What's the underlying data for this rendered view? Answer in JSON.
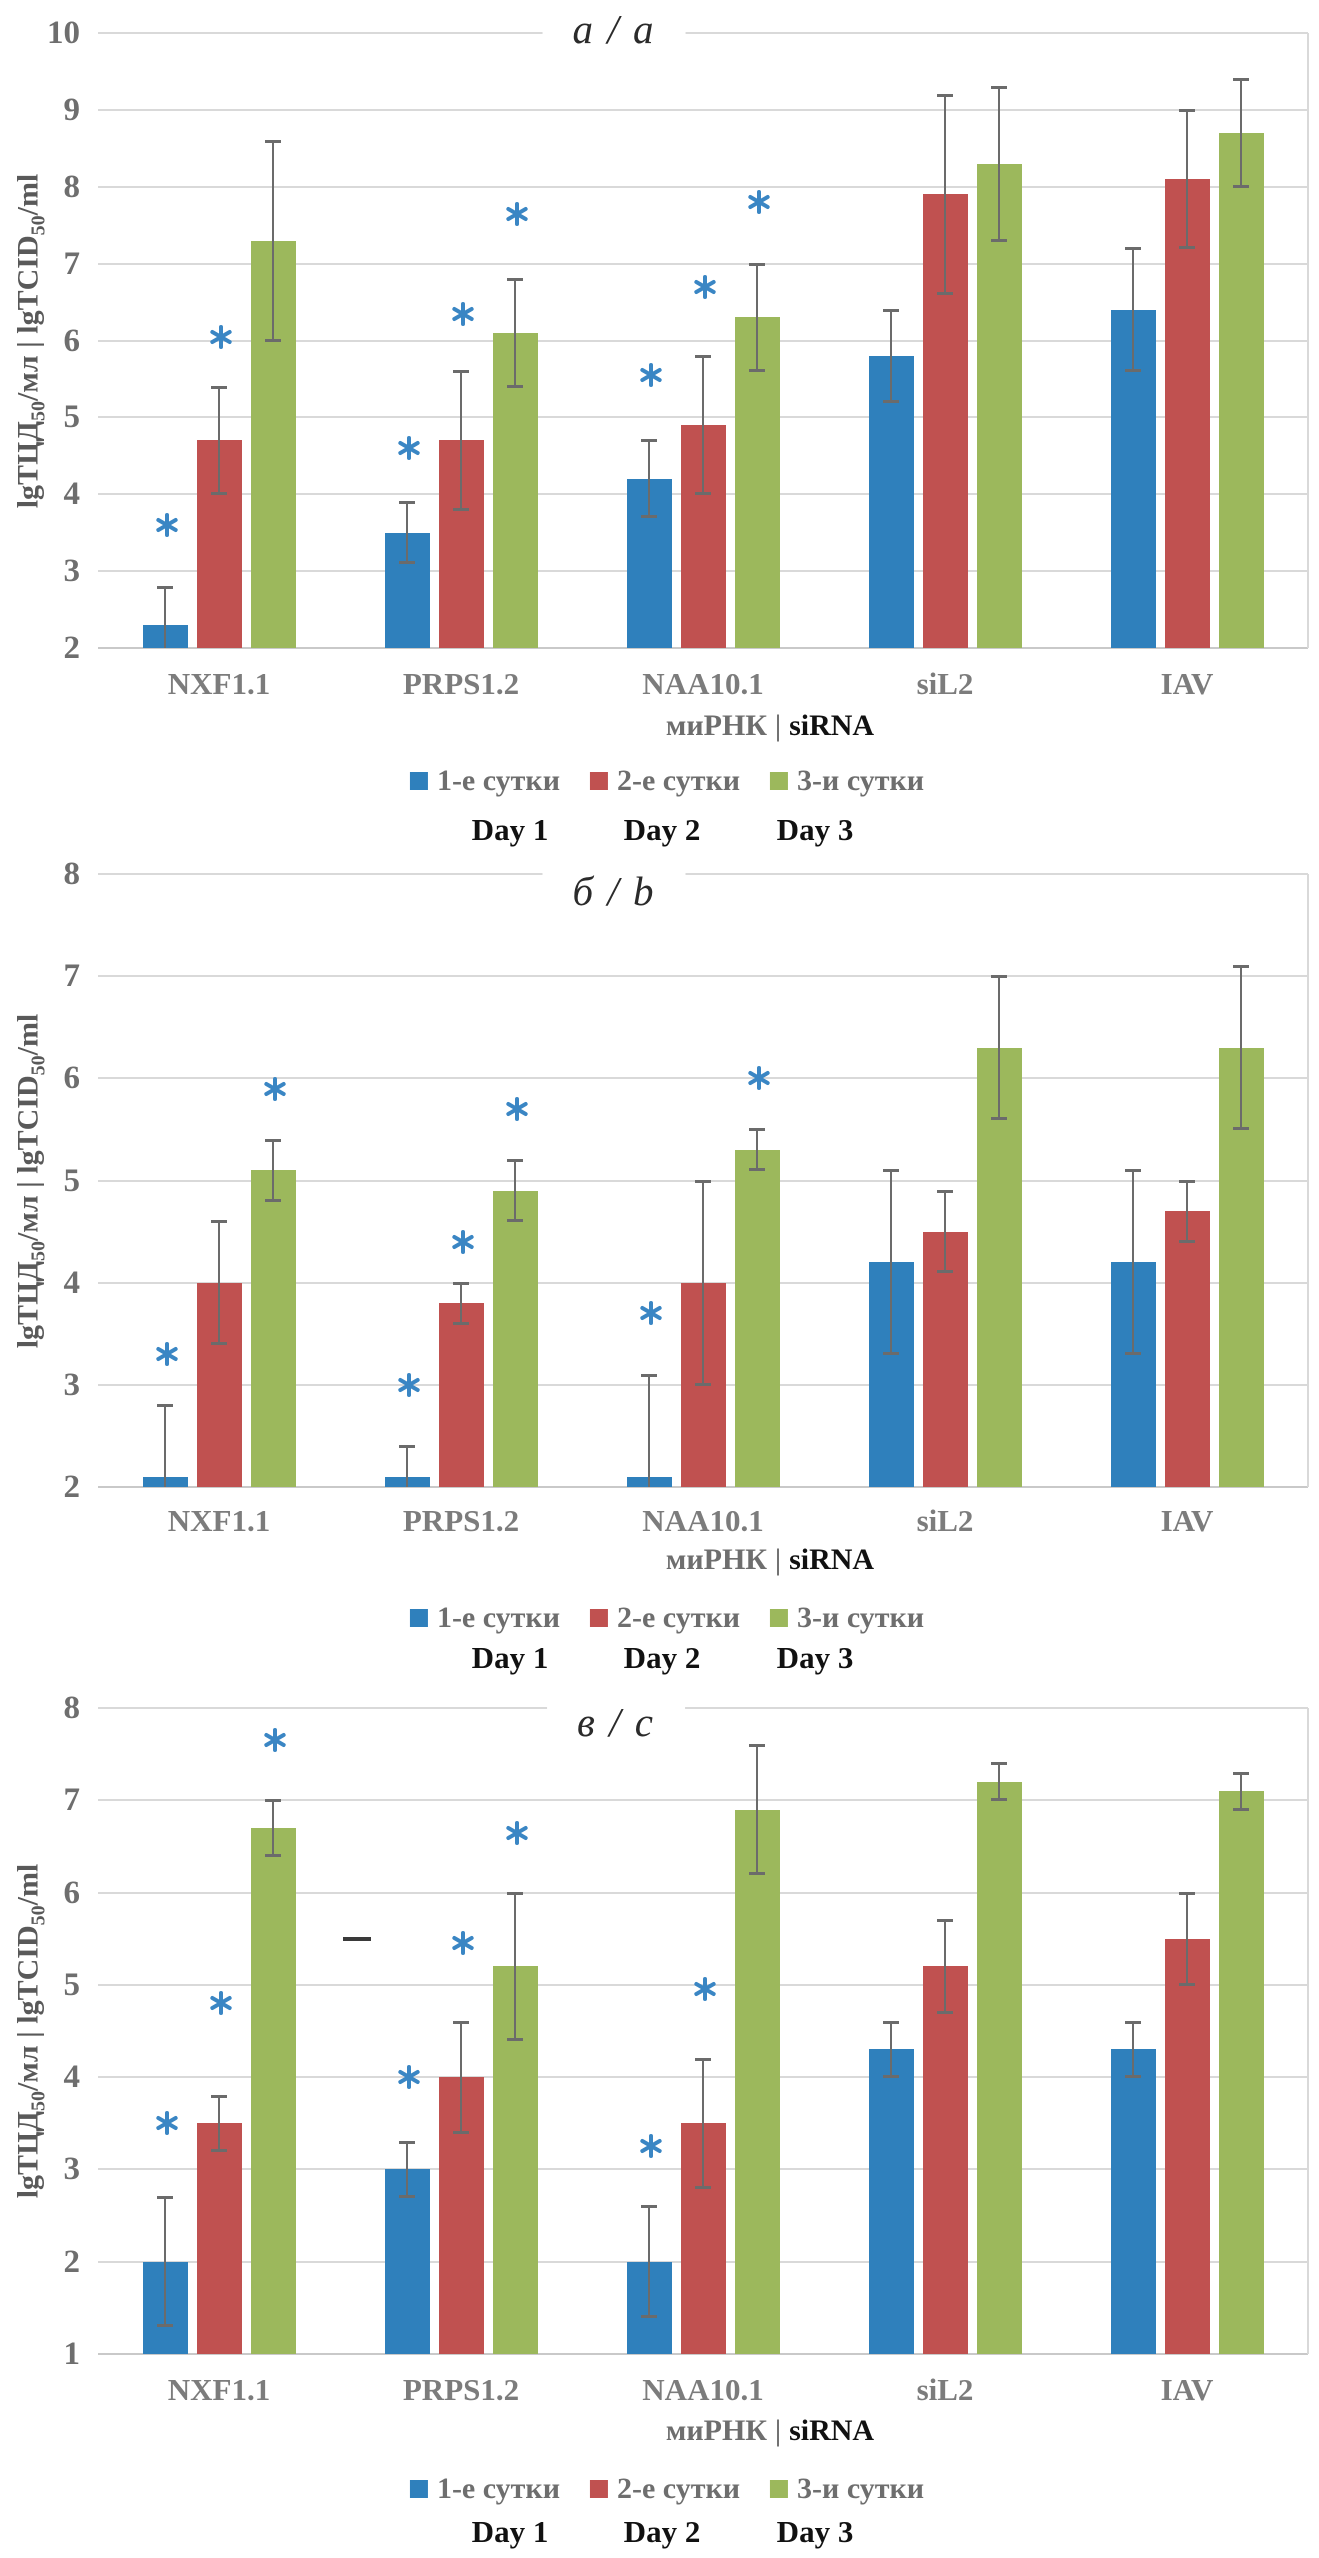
{
  "figure_background": "#ffffff",
  "significance_marker_color": "#3a86c4",
  "error_bar_color": "#6b6b6b",
  "chart_data": [
    {
      "type": "bar",
      "panel_label": "а / а",
      "ylabel": "lgТЦД50/мл | lgTCID50/ml",
      "xlabel_ru": "миРНК",
      "xlabel_sep": "|",
      "xlabel_en": "siRNA",
      "ylim": [
        2,
        10
      ],
      "yticks": [
        10,
        9,
        8,
        7,
        6,
        5,
        4,
        3,
        2
      ],
      "grid": "horizontal",
      "legend_position": "bottom",
      "significance_marker": "*",
      "categories": [
        "NXF1.1",
        "PRPS1.2",
        "NAA10.1",
        "siL2",
        "IAV"
      ],
      "series": [
        {
          "name": "1-е сутки",
          "day_label": "Day 1",
          "color": "#2F80BC",
          "values": [
            2.3,
            3.5,
            4.2,
            5.8,
            6.4
          ],
          "errors": [
            0.5,
            0.4,
            0.5,
            0.6,
            0.8
          ],
          "asterisks": [
            3.6,
            4.6,
            5.55,
            null,
            null
          ]
        },
        {
          "name": "2-е сутки",
          "day_label": "Day 2",
          "color": "#C05150",
          "values": [
            4.7,
            4.7,
            4.9,
            7.9,
            8.1
          ],
          "errors": [
            0.7,
            0.9,
            0.9,
            1.3,
            0.9
          ],
          "asterisks": [
            6.05,
            6.35,
            6.7,
            null,
            null
          ]
        },
        {
          "name": "3-и сутки",
          "day_label": "Day 3",
          "color": "#9CB85C",
          "values": [
            7.3,
            6.1,
            6.3,
            8.3,
            8.7
          ],
          "errors": [
            1.3,
            0.7,
            0.7,
            1.0,
            0.7
          ],
          "asterisks": [
            null,
            7.65,
            7.8,
            null,
            null
          ]
        }
      ],
      "annotations": []
    },
    {
      "type": "bar",
      "panel_label": "б / b",
      "ylabel": "lgТЦД50/мл | lgTCID50/ml",
      "xlabel_ru": "миРНК",
      "xlabel_sep": "|",
      "xlabel_en": "siRNA",
      "ylim": [
        2,
        8
      ],
      "yticks": [
        8,
        7,
        6,
        5,
        4,
        3,
        2
      ],
      "grid": "horizontal",
      "legend_position": "bottom",
      "significance_marker": "*",
      "categories": [
        "NXF1.1",
        "PRPS1.2",
        "NAA10.1",
        "siL2",
        "IAV"
      ],
      "series": [
        {
          "name": "1-е сутки",
          "day_label": "Day 1",
          "color": "#2F80BC",
          "values": [
            2.1,
            2.1,
            2.1,
            4.2,
            4.2
          ],
          "errors": [
            0.7,
            0.3,
            1.0,
            0.9,
            0.9
          ],
          "asterisks": [
            3.3,
            3.0,
            3.7,
            null,
            null
          ]
        },
        {
          "name": "2-е сутки",
          "day_label": "Day 2",
          "color": "#C05150",
          "values": [
            4.0,
            3.8,
            4.0,
            4.5,
            4.7
          ],
          "errors": [
            0.6,
            0.2,
            1.0,
            0.4,
            0.3
          ],
          "asterisks": [
            null,
            4.4,
            null,
            null,
            null
          ]
        },
        {
          "name": "3-и сутки",
          "day_label": "Day 3",
          "color": "#9CB85C",
          "values": [
            5.1,
            4.9,
            5.3,
            6.3,
            6.3
          ],
          "errors": [
            0.3,
            0.3,
            0.2,
            0.7,
            0.8
          ],
          "asterisks": [
            5.9,
            5.7,
            6.0,
            null,
            null
          ]
        }
      ],
      "annotations": []
    },
    {
      "type": "bar",
      "panel_label": "в / c",
      "ylabel": "lgТЦД50/мл | lgTCID50/ml",
      "xlabel_ru": "миРНК",
      "xlabel_sep": "|",
      "xlabel_en": "siRNA",
      "ylim": [
        1,
        8
      ],
      "yticks": [
        8,
        7,
        6,
        5,
        4,
        3,
        2,
        1
      ],
      "grid": "horizontal",
      "legend_position": "bottom",
      "significance_marker": "*",
      "categories": [
        "NXF1.1",
        "PRPS1.2",
        "NAA10.1",
        "siL2",
        "IAV"
      ],
      "series": [
        {
          "name": "1-е сутки",
          "day_label": "Day 1",
          "color": "#2F80BC",
          "values": [
            2.0,
            3.0,
            2.0,
            4.3,
            4.3
          ],
          "errors": [
            0.7,
            0.3,
            0.6,
            0.3,
            0.3
          ],
          "asterisks": [
            3.5,
            4.0,
            3.25,
            null,
            null
          ]
        },
        {
          "name": "2-е сутки",
          "day_label": "Day 2",
          "color": "#C05150",
          "values": [
            3.5,
            4.0,
            3.5,
            5.2,
            5.5
          ],
          "errors": [
            0.3,
            0.6,
            0.7,
            0.5,
            0.5
          ],
          "asterisks": [
            4.8,
            5.45,
            4.95,
            null,
            null
          ]
        },
        {
          "name": "3-и сутки",
          "day_label": "Day 3",
          "color": "#9CB85C",
          "values": [
            6.7,
            5.2,
            6.9,
            7.2,
            7.1
          ],
          "errors": [
            0.3,
            0.8,
            0.7,
            0.2,
            0.2
          ],
          "asterisks": [
            7.65,
            6.65,
            null,
            null,
            null
          ]
        }
      ],
      "annotations": [
        {
          "type": "dash",
          "near_category": "PRPS1.2",
          "side": "left",
          "value": 5.5
        }
      ]
    }
  ]
}
